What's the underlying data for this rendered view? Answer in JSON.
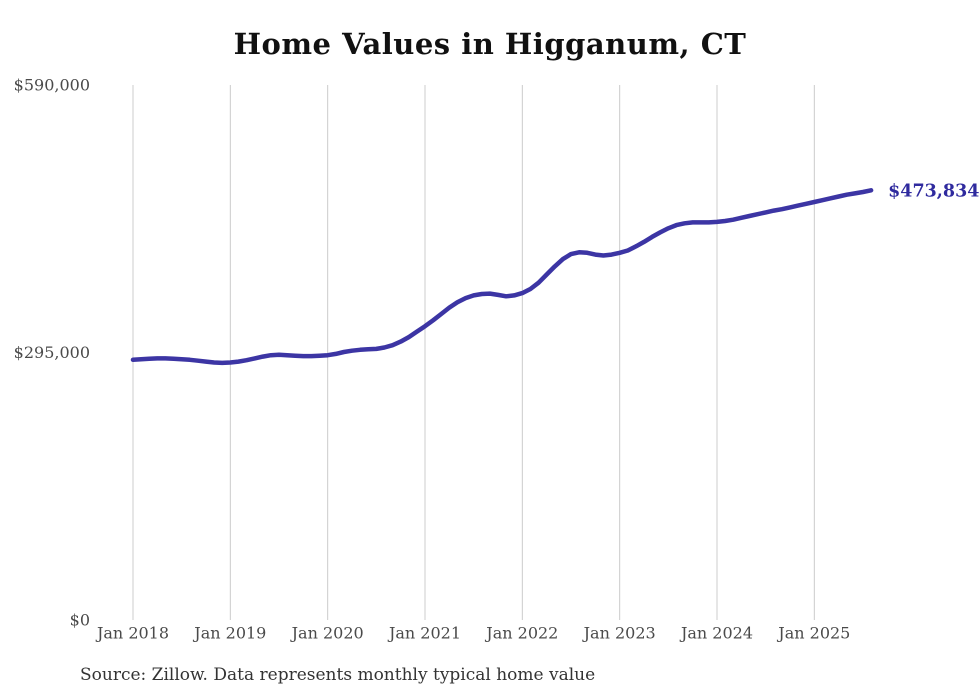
{
  "title": "Home Values in Higganum, CT",
  "source_note": "Source: Zillow. Data represents monthly typical home value",
  "colors": {
    "line": "#3c35a4",
    "end_label": "#2f2a9e",
    "grid": "#cccccc",
    "axis_text": "#4a4a4a",
    "title_text": "#111111",
    "source_text": "#333333",
    "background": "#ffffff"
  },
  "chart_data": {
    "type": "line",
    "title": "Home Values in Higganum, CT",
    "xlabel": "",
    "ylabel": "",
    "ylim": [
      0,
      590000
    ],
    "grid": "vertical-only",
    "legend": "none",
    "x_first": "2018-01",
    "x_last": "2025-08",
    "interval": "monthly",
    "end_label": "$473,834",
    "end_value": 473834,
    "y_ticks": [
      {
        "label": "$0",
        "value": 0
      },
      {
        "label": "$295,000",
        "value": 295000
      },
      {
        "label": "$590,000",
        "value": 590000
      }
    ],
    "x_ticks": [
      {
        "label": "Jan 2018",
        "month_index": 0
      },
      {
        "label": "Jan 2019",
        "month_index": 12
      },
      {
        "label": "Jan 2020",
        "month_index": 24
      },
      {
        "label": "Jan 2021",
        "month_index": 36
      },
      {
        "label": "Jan 2022",
        "month_index": 48
      },
      {
        "label": "Jan 2023",
        "month_index": 60
      },
      {
        "label": "Jan 2024",
        "month_index": 72
      },
      {
        "label": "Jan 2025",
        "month_index": 84
      }
    ],
    "series": [
      {
        "name": "Monthly typical home value",
        "values": [
          287000,
          287500,
          288000,
          288500,
          288500,
          288000,
          287500,
          287000,
          286000,
          285000,
          284000,
          283500,
          284000,
          285000,
          286500,
          288500,
          290500,
          292000,
          292500,
          292000,
          291500,
          291000,
          291000,
          291500,
          292000,
          293500,
          295500,
          297000,
          298000,
          298500,
          299000,
          300500,
          303000,
          307000,
          312000,
          318000,
          324000,
          330500,
          337500,
          344500,
          350500,
          355000,
          358000,
          359500,
          360000,
          358500,
          357000,
          358000,
          360500,
          365000,
          372000,
          381000,
          390000,
          398000,
          403500,
          405500,
          405000,
          403000,
          402000,
          403000,
          405000,
          407500,
          412000,
          417000,
          422500,
          427500,
          432000,
          435500,
          437500,
          438500,
          438500,
          438500,
          439000,
          440000,
          441500,
          443500,
          445500,
          447500,
          449500,
          451500,
          453000,
          455000,
          457000,
          459000,
          461000,
          463000,
          465000,
          467000,
          469000,
          470500,
          472000,
          473834
        ]
      }
    ]
  }
}
